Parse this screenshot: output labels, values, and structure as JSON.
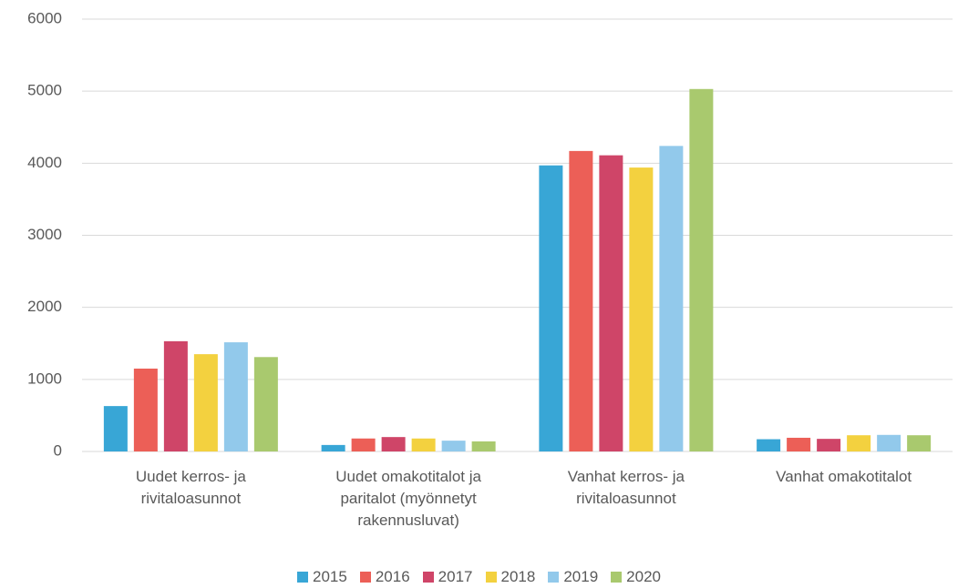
{
  "chart_data": {
    "type": "bar",
    "categories": [
      "Uudet kerros- ja rivitaloasunnot",
      "Uudet omakotitalot ja paritalot (myönnetyt rakennusluvat)",
      "Vanhat kerros- ja rivitaloasunnot",
      "Vanhat omakotitalot"
    ],
    "series": [
      {
        "name": "2015",
        "color": "#38a6d6",
        "values": [
          630,
          90,
          3970,
          170
        ]
      },
      {
        "name": "2016",
        "color": "#ec5f57",
        "values": [
          1150,
          180,
          4170,
          190
        ]
      },
      {
        "name": "2017",
        "color": "#cf4568",
        "values": [
          1530,
          200,
          4110,
          175
        ]
      },
      {
        "name": "2018",
        "color": "#f3d13f",
        "values": [
          1350,
          180,
          3940,
          225
        ]
      },
      {
        "name": "2019",
        "color": "#92c9eb",
        "values": [
          1515,
          150,
          4240,
          230
        ]
      },
      {
        "name": "2020",
        "color": "#a9c96e",
        "values": [
          1310,
          140,
          5030,
          225
        ]
      }
    ],
    "ylim": [
      0,
      6000
    ],
    "yticks": [
      0,
      1000,
      2000,
      3000,
      4000,
      5000,
      6000
    ],
    "grid": true,
    "legend": "bottom"
  }
}
